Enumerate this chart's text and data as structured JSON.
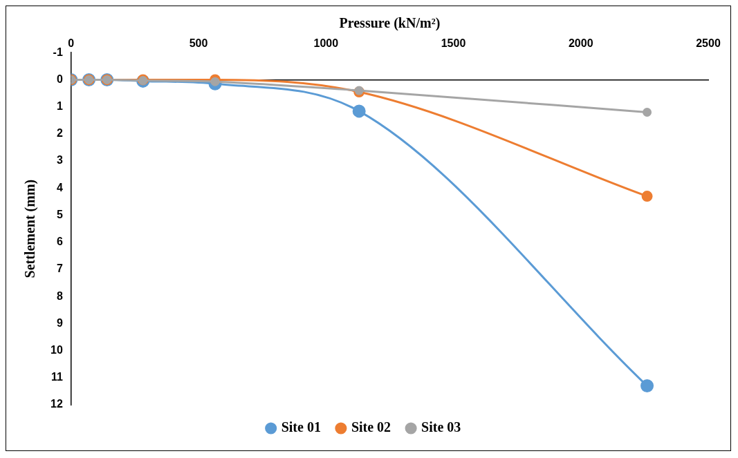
{
  "chart_data": {
    "type": "line",
    "xlabel": "Pressure (kN/m²)",
    "ylabel": "Settlement (mm)",
    "x": [
      0,
      70,
      141,
      282,
      565,
      1130,
      2260
    ],
    "series": [
      {
        "name": "Site 01",
        "color": "#5b9bd5",
        "values": [
          0,
          0,
          0,
          0.05,
          0.15,
          1.16,
          11.3
        ]
      },
      {
        "name": "Site 02",
        "color": "#ed7d31",
        "values": [
          0,
          0,
          0,
          0,
          0,
          0.45,
          4.3
        ]
      },
      {
        "name": "Site 03",
        "color": "#a5a5a5",
        "values": [
          0,
          0,
          0,
          0.03,
          0.07,
          0.4,
          1.2
        ]
      }
    ],
    "xlim": [
      0,
      2500
    ],
    "xticks": [
      0,
      500,
      1000,
      1500,
      2000,
      2500
    ],
    "ylim": [
      12,
      -1
    ],
    "yticks": [
      -1,
      0,
      1,
      2,
      3,
      4,
      5,
      6,
      7,
      8,
      9,
      10,
      11,
      12
    ],
    "legend": "bottom",
    "marker": "circle",
    "line_style": "solid"
  }
}
